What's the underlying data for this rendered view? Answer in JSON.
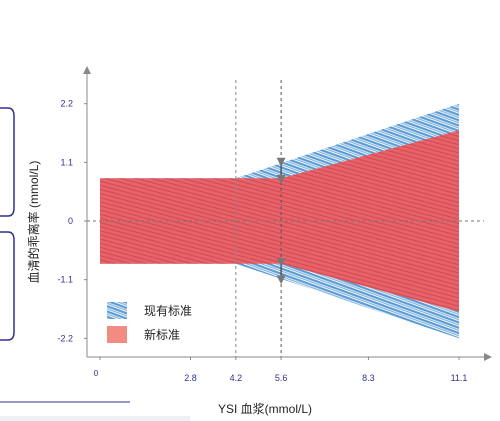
{
  "chart_data": {
    "type": "area",
    "title": "",
    "xlabel": "YSI 血浆(mmol/L)",
    "ylabel": "血清的乖离率 (mmol/L)",
    "x_ticks": [
      "0",
      "2.8",
      "4.2",
      "5.6",
      "8.3",
      "11.1"
    ],
    "y_ticks": [
      "2.2",
      "1.1",
      "0",
      "-1.1",
      "-2.2"
    ],
    "xlim": [
      0,
      11.1
    ],
    "ylim": [
      -2.2,
      2.2
    ],
    "reference_lines_x": [
      4.2,
      5.6
    ],
    "reference_line_y": 0,
    "series": [
      {
        "name": "现有标准",
        "color": "#5b9bd5",
        "pattern": "hatched",
        "upper": [
          {
            "x": 0,
            "y": 0.8
          },
          {
            "x": 4.2,
            "y": 0.8
          },
          {
            "x": 11.1,
            "y": 2.2
          }
        ],
        "lower": [
          {
            "x": 0,
            "y": -0.8
          },
          {
            "x": 4.2,
            "y": -0.8
          },
          {
            "x": 11.1,
            "y": -2.2
          }
        ]
      },
      {
        "name": "新标准",
        "color": "#e5636a",
        "pattern": "solid",
        "upper": [
          {
            "x": 0,
            "y": 0.8
          },
          {
            "x": 5.6,
            "y": 0.8
          },
          {
            "x": 11.1,
            "y": 1.7
          }
        ],
        "lower": [
          {
            "x": 0,
            "y": -0.8
          },
          {
            "x": 5.6,
            "y": -0.8
          },
          {
            "x": 11.1,
            "y": -1.7
          }
        ]
      }
    ],
    "legend_position": "bottom-left"
  }
}
